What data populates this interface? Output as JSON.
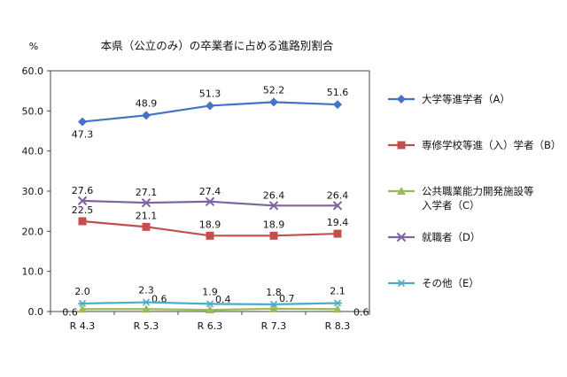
{
  "chart_data": {
    "type": "line",
    "title": "本県（公立のみ）の卒業者に占める進路別割合",
    "ylabel": "%",
    "ylim": [
      0,
      60
    ],
    "yticks": [
      "0.0",
      "10.0",
      "20.0",
      "30.0",
      "40.0",
      "50.0",
      "60.0"
    ],
    "categories": [
      "R 4.3",
      "R 5.3",
      "R 6.3",
      "R 7.3",
      "R 8.3"
    ],
    "grid": false,
    "legend_position": "right",
    "series": [
      {
        "name": "大学等進学者（A）",
        "values": [
          47.3,
          48.9,
          51.3,
          52.2,
          51.6
        ],
        "labels": [
          "47.3",
          "48.9",
          "51.3",
          "52.2",
          "51.6"
        ],
        "color": "#4472C4",
        "marker": "diamond"
      },
      {
        "name": "専修学校等進（入）学者（B）",
        "values": [
          22.5,
          21.1,
          18.9,
          18.9,
          19.4
        ],
        "labels": [
          "22.5",
          "21.1",
          "18.9",
          "18.9",
          "19.4"
        ],
        "color": "#C0504D",
        "marker": "square"
      },
      {
        "name": "公共職業能力開発施設等入学者（C）",
        "values": [
          0.6,
          0.6,
          0.4,
          0.7,
          0.6
        ],
        "labels": [
          "0.6",
          "0.6",
          "0.4",
          "0.7",
          "0.6"
        ],
        "color": "#9BBB59",
        "marker": "triangle"
      },
      {
        "name": "就職者（D）",
        "values": [
          27.6,
          27.1,
          27.4,
          26.4,
          26.4
        ],
        "labels": [
          "27.6",
          "27.1",
          "27.4",
          "26.4",
          "26.4"
        ],
        "color": "#8064A2",
        "marker": "x"
      },
      {
        "name": "その他（E）",
        "values": [
          2.0,
          2.3,
          1.9,
          1.8,
          2.1
        ],
        "labels": [
          "2.0",
          "2.3",
          "1.9",
          "1.8",
          "2.1"
        ],
        "color": "#4BACC6",
        "marker": "star"
      }
    ],
    "legend_lines": [
      [
        "大学等進学者（A）"
      ],
      [
        "専修学校等進（入）学者（B）"
      ],
      [
        "公共職業能力開発施設等",
        "入学者（C）"
      ],
      [
        "就職者（D）"
      ],
      [
        "その他（E）"
      ]
    ]
  }
}
